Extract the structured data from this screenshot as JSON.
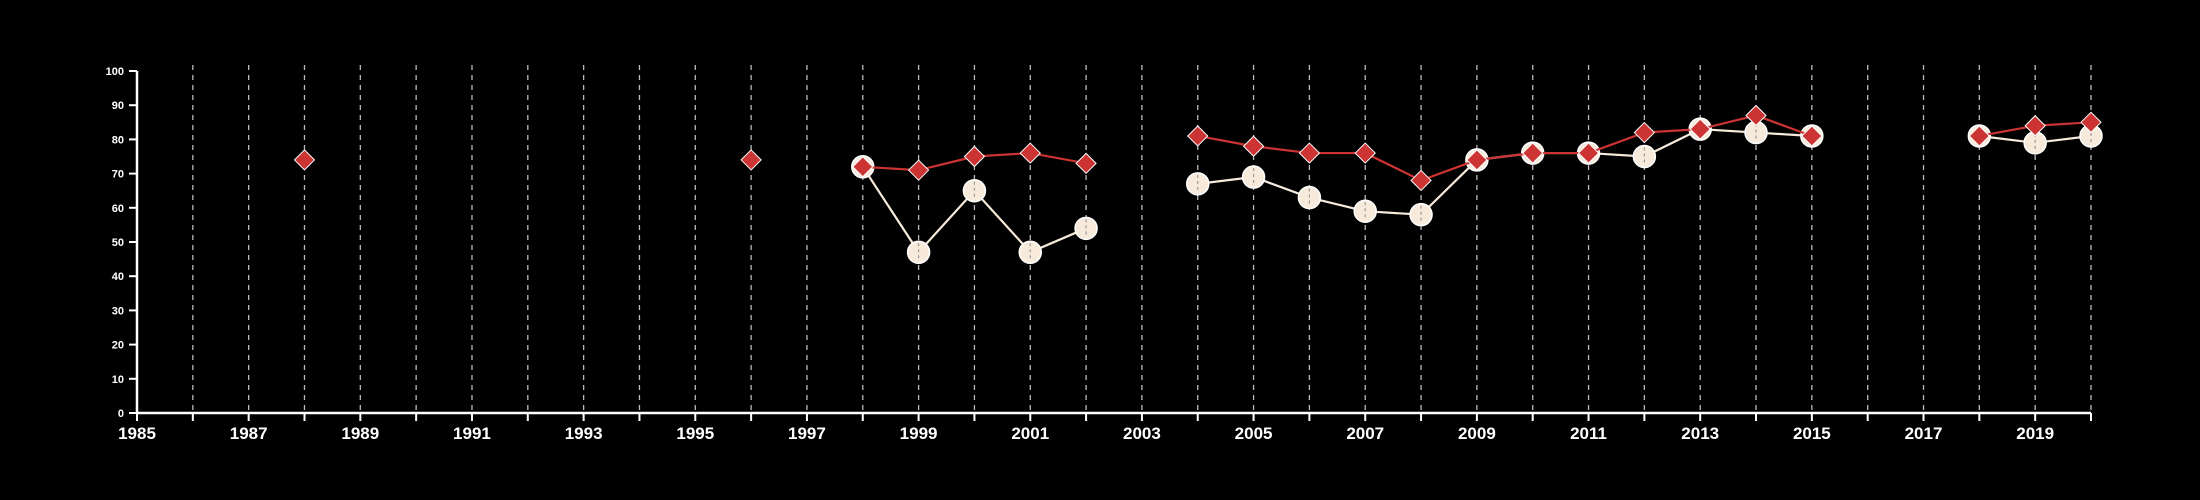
{
  "chart_data": {
    "type": "line",
    "title": "",
    "xlabel": "",
    "ylabel": "",
    "xlim": [
      1985,
      2020
    ],
    "ylim": [
      0,
      100
    ],
    "y_ticks": [
      0,
      10,
      20,
      30,
      40,
      50,
      60,
      70,
      80,
      90,
      100
    ],
    "x_tick_labels": [
      1985,
      1987,
      1989,
      1991,
      1993,
      1995,
      1997,
      1999,
      2001,
      2003,
      2005,
      2007,
      2009,
      2011,
      2013,
      2015,
      2017,
      2019
    ],
    "vertical_gridlines_every_year": true,
    "horizontal_grid": false,
    "legend": "none",
    "series": [
      {
        "marker": "diamond",
        "color": "#cc3333",
        "segments": [
          [
            [
              1988,
              74
            ]
          ],
          [
            [
              1996,
              74
            ]
          ],
          [
            [
              1998,
              72
            ],
            [
              1999,
              71
            ],
            [
              2000,
              75
            ],
            [
              2001,
              76
            ],
            [
              2002,
              73
            ]
          ],
          [
            [
              2004,
              81
            ],
            [
              2005,
              78
            ],
            [
              2006,
              76
            ],
            [
              2007,
              76
            ],
            [
              2008,
              68
            ],
            [
              2009,
              74
            ],
            [
              2010,
              76
            ],
            [
              2011,
              76
            ],
            [
              2012,
              82
            ],
            [
              2013,
              83
            ],
            [
              2014,
              87
            ],
            [
              2015,
              81
            ]
          ],
          [
            [
              2018,
              81
            ],
            [
              2019,
              84
            ],
            [
              2020,
              85
            ]
          ]
        ]
      },
      {
        "marker": "circle",
        "color": "#f7eadb",
        "segments": [
          [
            [
              1998,
              72
            ],
            [
              1999,
              47
            ],
            [
              2000,
              65
            ],
            [
              2001,
              47
            ],
            [
              2002,
              54
            ]
          ],
          [
            [
              2004,
              67
            ],
            [
              2005,
              69
            ],
            [
              2006,
              63
            ],
            [
              2007,
              59
            ],
            [
              2008,
              58
            ],
            [
              2009,
              74
            ],
            [
              2010,
              76
            ],
            [
              2011,
              76
            ],
            [
              2012,
              75
            ],
            [
              2013,
              83
            ],
            [
              2014,
              82
            ],
            [
              2015,
              81
            ]
          ],
          [
            [
              2018,
              81
            ],
            [
              2019,
              79
            ],
            [
              2020,
              81
            ]
          ]
        ]
      }
    ]
  }
}
